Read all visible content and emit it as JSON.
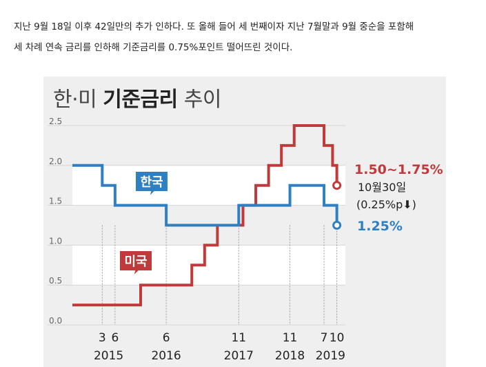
{
  "article": {
    "line1": "지난 9월 18일 이후 42일만의 추가 인하다. 또 올해 들어 세 번째이자 지난 7월말과 9월 중순을 포함해",
    "line2": "세 차례 연속 금리를 인하해 기준금리를 0.75%포인트 떨어뜨린 것이다."
  },
  "graphic": {
    "title_part1": "한·미",
    "title_part2": "기준금리",
    "title_part3": "추이"
  },
  "chart_data": {
    "type": "line",
    "title": "한·미 기준금리 추이",
    "ylim": [
      0,
      2.5
    ],
    "y_ticks": [
      "0.0",
      "0.5",
      "1.0",
      "1.5",
      "2.0",
      "2.5"
    ],
    "x_tick_labels": [
      {
        "month": "3",
        "year": ""
      },
      {
        "month": "6",
        "year": "2015"
      },
      {
        "month": "6",
        "year": "2016"
      },
      {
        "month": "11",
        "year": "2017"
      },
      {
        "month": "11",
        "year": "2018"
      },
      {
        "month": "7",
        "year": ""
      },
      {
        "month": "10",
        "year": "2019"
      }
    ],
    "colors": {
      "korea": "#2f7fc1",
      "us": "#c0393b"
    },
    "series": [
      {
        "name": "한국",
        "steps": [
          {
            "x": "2014-08",
            "y": 2.0
          },
          {
            "x": "2014-10",
            "y": 2.0
          },
          {
            "x": "2015-03",
            "y": 1.75
          },
          {
            "x": "2015-06",
            "y": 1.5
          },
          {
            "x": "2016-06",
            "y": 1.25
          },
          {
            "x": "2017-11",
            "y": 1.5
          },
          {
            "x": "2018-11",
            "y": 1.75
          },
          {
            "x": "2019-07",
            "y": 1.5
          },
          {
            "x": "2019-10",
            "y": 1.25
          }
        ],
        "end_label": "1.25%"
      },
      {
        "name": "미국",
        "steps": [
          {
            "x": "2014-08",
            "y": 0.25
          },
          {
            "x": "2015-12",
            "y": 0.5
          },
          {
            "x": "2016-12",
            "y": 0.75
          },
          {
            "x": "2017-03",
            "y": 1.0
          },
          {
            "x": "2017-06",
            "y": 1.25
          },
          {
            "x": "2017-12",
            "y": 1.5
          },
          {
            "x": "2018-03",
            "y": 1.75
          },
          {
            "x": "2018-06",
            "y": 2.0
          },
          {
            "x": "2018-09",
            "y": 2.25
          },
          {
            "x": "2018-12",
            "y": 2.5
          },
          {
            "x": "2019-07",
            "y": 2.25
          },
          {
            "x": "2019-09",
            "y": 2.0
          },
          {
            "x": "2019-10",
            "y": 1.75
          }
        ],
        "end_label": "1.50~1.75%",
        "end_note_1": "10월30일",
        "end_note_2": "(0.25%p",
        "end_note_arrow": "⬇",
        "end_note_3": ")"
      }
    ]
  }
}
